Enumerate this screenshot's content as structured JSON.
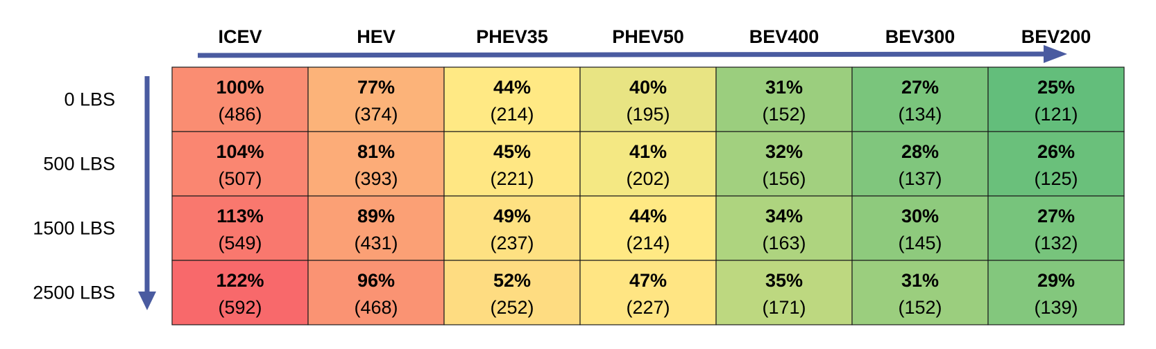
{
  "chart_data": {
    "type": "heatmap",
    "columns": [
      "ICEV",
      "HEV",
      "PHEV35",
      "PHEV50",
      "BEV400",
      "BEV300",
      "BEV200"
    ],
    "rows": [
      "0 LBS",
      "500 LBS",
      "1500 LBS",
      "2500 LBS"
    ],
    "percent_values": [
      [
        "100%",
        "77%",
        "44%",
        "40%",
        "31%",
        "27%",
        "25%"
      ],
      [
        "104%",
        "81%",
        "45%",
        "41%",
        "32%",
        "28%",
        "26%"
      ],
      [
        "113%",
        "89%",
        "49%",
        "44%",
        "34%",
        "30%",
        "27%"
      ],
      [
        "122%",
        "96%",
        "52%",
        "47%",
        "35%",
        "31%",
        "29%"
      ]
    ],
    "values": [
      [
        486,
        374,
        214,
        195,
        152,
        134,
        121
      ],
      [
        507,
        393,
        221,
        202,
        156,
        137,
        125
      ],
      [
        549,
        431,
        237,
        214,
        163,
        145,
        132
      ],
      [
        592,
        468,
        252,
        227,
        171,
        152,
        139
      ]
    ],
    "value_labels": [
      [
        "(486)",
        "(374)",
        "(214)",
        "(195)",
        "(152)",
        "(134)",
        "(121)"
      ],
      [
        "(507)",
        "(393)",
        "(221)",
        "(202)",
        "(156)",
        "(137)",
        "(125)"
      ],
      [
        "(549)",
        "(431)",
        "(237)",
        "(214)",
        "(163)",
        "(145)",
        "(132)"
      ],
      [
        "(592)",
        "(468)",
        "(252)",
        "(227)",
        "(171)",
        "(152)",
        "(139)"
      ]
    ],
    "color_scale": {
      "low": "#63be7b",
      "mid": "#ffeb84",
      "high": "#f8696b"
    },
    "arrow_color": "#4a5ba0",
    "title": "",
    "xlabel": "",
    "ylabel": ""
  }
}
